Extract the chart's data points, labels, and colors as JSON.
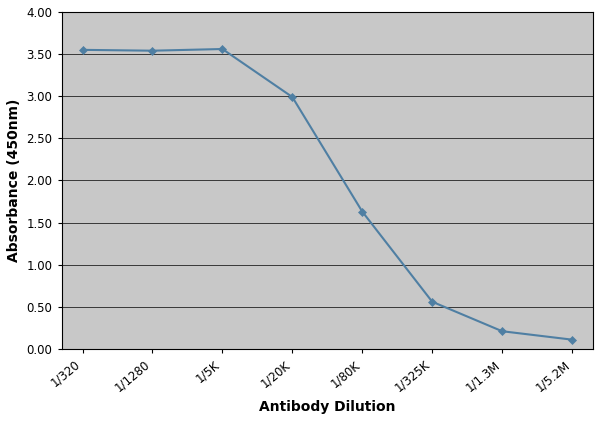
{
  "x_labels": [
    "1/320",
    "1/1280",
    "1/5K",
    "1/20K",
    "1/80K",
    "1/325K",
    "1/1.3M",
    "1/5.2M"
  ],
  "y_values": [
    3.55,
    3.54,
    3.56,
    2.99,
    1.63,
    0.56,
    0.21,
    0.11
  ],
  "line_color": "#4f7fa3",
  "marker_color": "#4f7fa3",
  "marker_style": "D",
  "marker_size": 4,
  "line_width": 1.5,
  "xlabel": "Antibody Dilution",
  "ylabel": "Absorbance (450nm)",
  "ylim": [
    0.0,
    4.0
  ],
  "yticks": [
    0.0,
    0.5,
    1.0,
    1.5,
    2.0,
    2.5,
    3.0,
    3.5,
    4.0
  ],
  "background_color": "#c8c8c8",
  "grid_color": "#000000",
  "xlabel_fontsize": 10,
  "ylabel_fontsize": 10,
  "tick_fontsize": 8.5,
  "fig_facecolor": "#ffffff"
}
